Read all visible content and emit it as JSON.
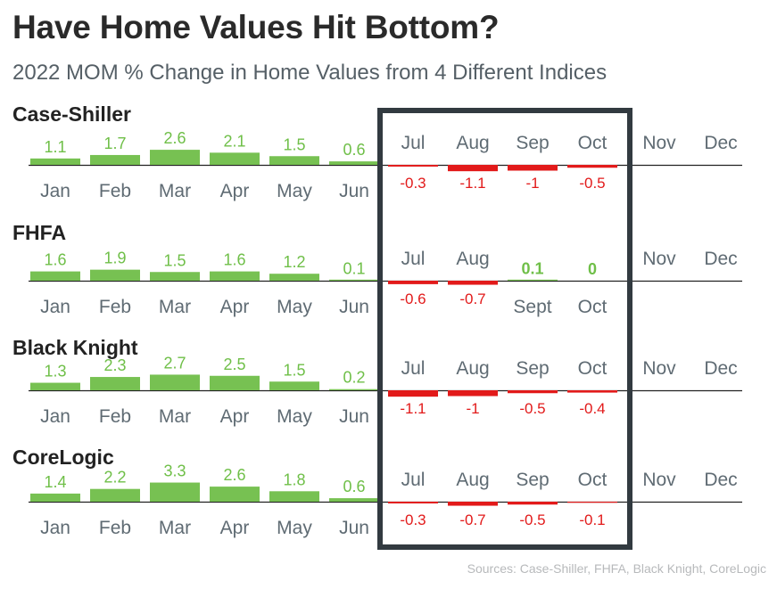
{
  "title": "Have Home Values Hit Bottom?",
  "subtitle": "2022 MOM % Change in Home Values from 4 Different Indices",
  "sources": "Sources: Case-Shiller, FHFA, Black Knight, CoreLogic",
  "colors": {
    "positive": "#77c152",
    "positive_text": "#6fbf48",
    "negative": "#e21a1a",
    "axis": "#222222",
    "month_label": "#5f6b73",
    "highlight_frame": "#323a40",
    "index_title": "#222222"
  },
  "chart_data": [
    {
      "type": "bar",
      "title": "Case-Shiller",
      "categories": [
        "Jan",
        "Feb",
        "Mar",
        "Apr",
        "May",
        "Jun",
        "Jul",
        "Aug",
        "Sep",
        "Oct",
        "Nov",
        "Dec"
      ],
      "values": [
        1.1,
        1.7,
        2.6,
        2.1,
        1.5,
        0.6,
        -0.3,
        -1.1,
        -1,
        -0.5,
        null,
        null
      ],
      "value_labels": [
        "1.1",
        "1.7",
        "2.6",
        "2.1",
        "1.5",
        "0.6",
        "-0.3",
        "-1.1",
        "-1",
        "-0.5",
        "",
        ""
      ],
      "bold_labels": [
        false,
        false,
        false,
        false,
        false,
        false,
        false,
        false,
        false,
        false,
        false,
        false
      ],
      "highlighted_months": [
        "Jul",
        "Aug",
        "Sep",
        "Oct"
      ]
    },
    {
      "type": "bar",
      "title": "FHFA",
      "categories": [
        "Jan",
        "Feb",
        "Mar",
        "Apr",
        "May",
        "Jun",
        "Jul",
        "Aug",
        "Sept",
        "Oct",
        "Nov",
        "Dec"
      ],
      "values": [
        1.6,
        1.9,
        1.5,
        1.6,
        1.2,
        0.1,
        -0.6,
        -0.7,
        0.1,
        0,
        null,
        null
      ],
      "value_labels": [
        "1.6",
        "1.9",
        "1.5",
        "1.6",
        "1.2",
        "0.1",
        "-0.6",
        "-0.7",
        "0.1",
        "0",
        "",
        ""
      ],
      "bold_labels": [
        false,
        false,
        false,
        false,
        false,
        false,
        false,
        false,
        true,
        true,
        false,
        false
      ],
      "highlighted_months": [
        "Jul",
        "Aug",
        "Sept",
        "Oct"
      ]
    },
    {
      "type": "bar",
      "title": "Black Knight",
      "categories": [
        "Jan",
        "Feb",
        "Mar",
        "Apr",
        "May",
        "Jun",
        "Jul",
        "Aug",
        "Sep",
        "Oct",
        "Nov",
        "Dec"
      ],
      "values": [
        1.3,
        2.3,
        2.7,
        2.5,
        1.5,
        0.2,
        -1.1,
        -1,
        -0.5,
        -0.4,
        null,
        null
      ],
      "value_labels": [
        "1.3",
        "2.3",
        "2.7",
        "2.5",
        "1.5",
        "0.2",
        "-1.1",
        "-1",
        "-0.5",
        "-0.4",
        "",
        ""
      ],
      "bold_labels": [
        false,
        false,
        false,
        false,
        false,
        false,
        false,
        false,
        false,
        false,
        false,
        false
      ],
      "highlighted_months": [
        "Jul",
        "Aug",
        "Sep",
        "Oct"
      ]
    },
    {
      "type": "bar",
      "title": "CoreLogic",
      "categories": [
        "Jan",
        "Feb",
        "Mar",
        "Apr",
        "May",
        "Jun",
        "Jul",
        "Aug",
        "Sep",
        "Oct",
        "Nov",
        "Dec"
      ],
      "values": [
        1.4,
        2.2,
        3.3,
        2.6,
        1.8,
        0.6,
        -0.3,
        -0.7,
        -0.5,
        -0.1,
        null,
        null
      ],
      "value_labels": [
        "1.4",
        "2.2",
        "3.3",
        "2.6",
        "1.8",
        "0.6",
        "-0.3",
        "-0.7",
        "-0.5",
        "-0.1",
        "",
        ""
      ],
      "bold_labels": [
        false,
        false,
        false,
        false,
        false,
        false,
        false,
        false,
        false,
        false,
        false,
        false
      ],
      "highlighted_months": [
        "Jul",
        "Aug",
        "Sep",
        "Oct"
      ]
    }
  ]
}
